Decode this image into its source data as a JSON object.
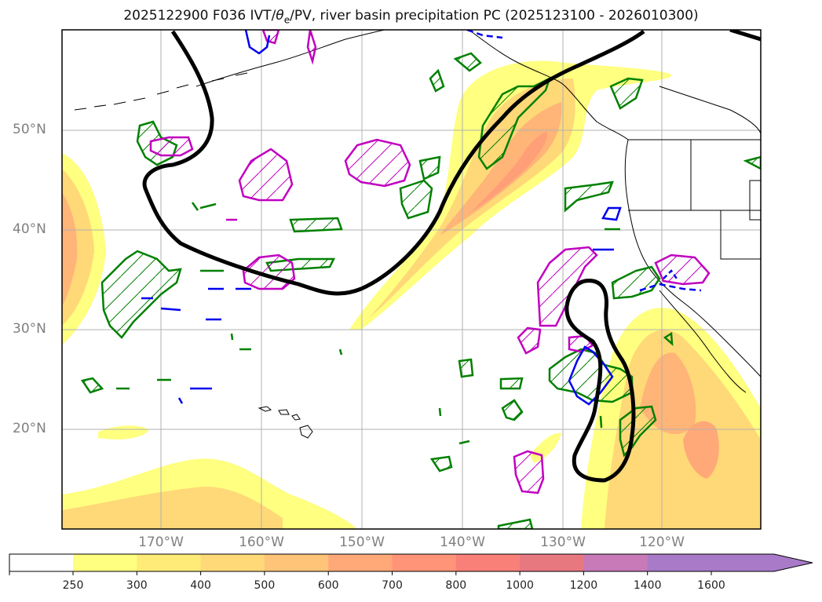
{
  "title": {
    "prefix": "2025122900 F036 IVT/",
    "theta": "θ",
    "theta_sub": "e",
    "suffix": "/PV, river basin precipitation PC (2025123100 - 2026010300)"
  },
  "axes": {
    "lat_labels": [
      "50°N",
      "40°N",
      "30°N",
      "20°N"
    ],
    "lon_labels": [
      "170°W",
      "160°W",
      "150°W",
      "140°W",
      "130°W",
      "120°W"
    ]
  },
  "colorbar": {
    "ticks": [
      "250",
      "300",
      "400",
      "500",
      "600",
      "700",
      "800",
      "1000",
      "1200",
      "1400",
      "1600"
    ],
    "colors": [
      "#ffff80",
      "#ffeb78",
      "#ffd878",
      "#ffc478",
      "#ffa878",
      "#ff9478",
      "#f88078",
      "#e87880",
      "#c87ab8",
      "#a87ac8"
    ]
  },
  "palette": {
    "ivt_light": "#ffff80",
    "ivt_mid": "#ffd878",
    "ivt_high": "#ffa878",
    "theta_contour": "#008000",
    "pv_contour": "#c000c0",
    "blue_contour": "#0000ee",
    "thick_contour": "#000000"
  }
}
